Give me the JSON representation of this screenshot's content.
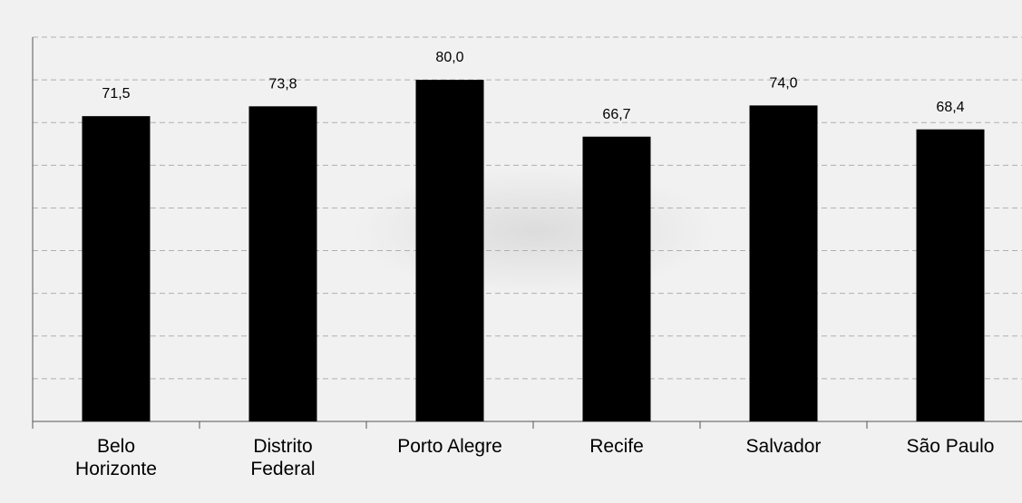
{
  "chart_data": {
    "type": "bar",
    "categories": [
      "Belo Horizonte",
      "Distrito Federal",
      "Porto Alegre",
      "Recife",
      "Salvador",
      "São Paulo"
    ],
    "values": [
      71.5,
      73.8,
      80.0,
      66.7,
      74.0,
      68.4
    ],
    "value_labels": [
      "71,5",
      "73,8",
      "80,0",
      "66,7",
      "74,0",
      "68,4"
    ],
    "color": "#000000",
    "ylim": [
      0,
      90
    ],
    "yticks": [
      0,
      10,
      20,
      30,
      40,
      50,
      60,
      70,
      80,
      90
    ],
    "grid": true
  }
}
